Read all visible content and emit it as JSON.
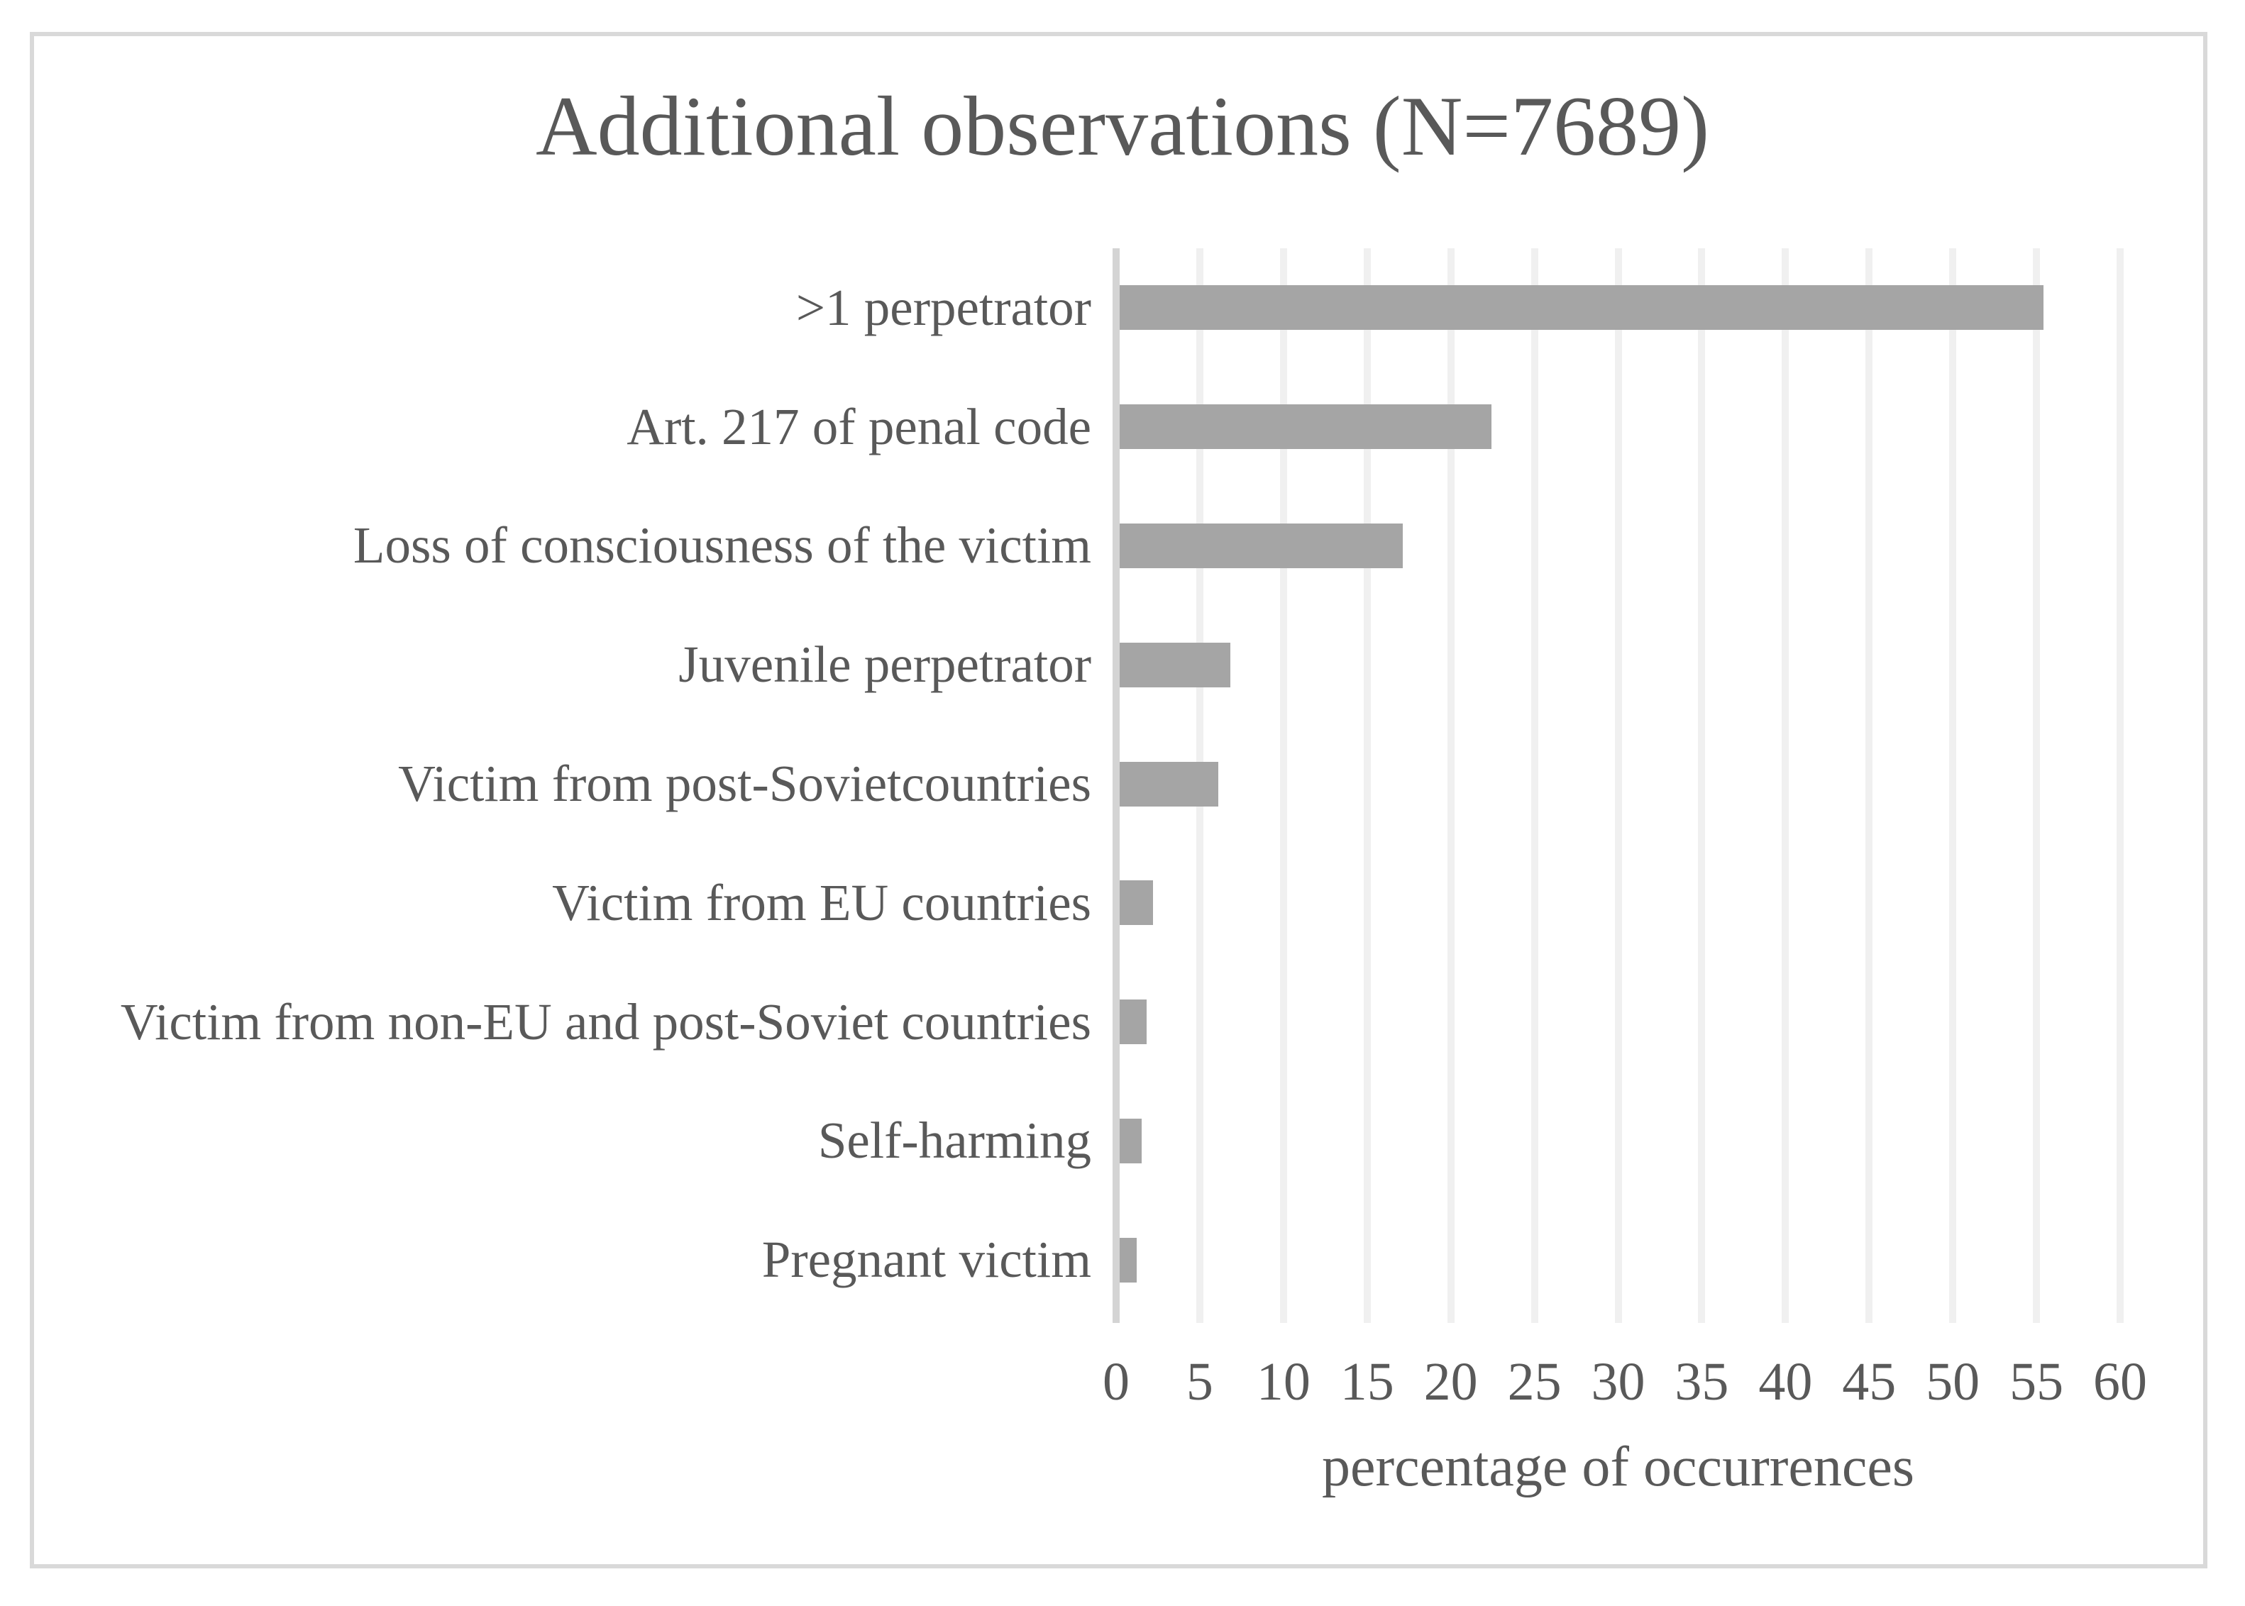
{
  "figure": {
    "background_color": "#ffffff",
    "border_color": "#d9d9d9"
  },
  "chart_data": {
    "type": "bar",
    "orientation": "horizontal",
    "title": "Additional observations (N=7689)",
    "xlabel": "percentage of occurrences",
    "ylabel": "",
    "categories": [
      ">1 perpetrator",
      "Art. 217 of penal code",
      "Loss of consciousness of the victim",
      "Juvenile perpetrator",
      "Victim from post-Sovietcountries",
      "Victim from EU countries",
      "Victim from non-EU and post-Soviet countries",
      "Self-harming",
      "Pregnant victim"
    ],
    "values": [
      55.2,
      22.2,
      16.9,
      6.6,
      5.9,
      2.0,
      1.6,
      1.3,
      1.0
    ],
    "xlim": [
      0,
      60
    ],
    "xticks": [
      0,
      5,
      10,
      15,
      20,
      25,
      30,
      35,
      40,
      45,
      50,
      55,
      60
    ],
    "grid": "vertical-gridlines-on",
    "legend": "none",
    "bar_color": "#a5a5a5",
    "text_color": "#595959",
    "gridline_color": "#f0f0f0",
    "zero_axis_line_color": "#d4d4d4"
  }
}
